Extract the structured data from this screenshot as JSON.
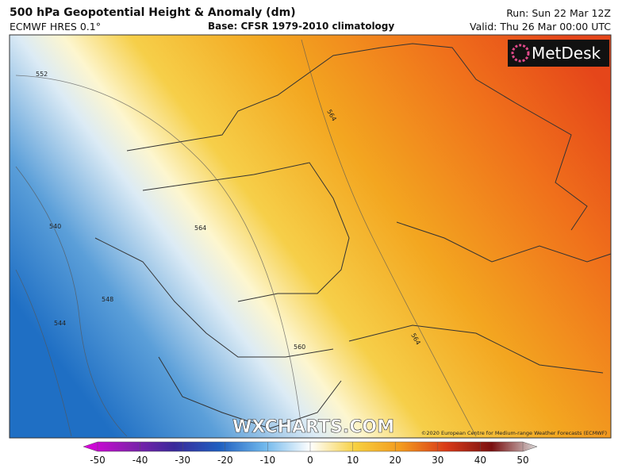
{
  "header": {
    "title": "500 hPa Geopotential Height & Anomaly (dm)",
    "model": "ECMWF HRES 0.1°",
    "base": "Base: CFSR 1979-2010 climatology",
    "run": "Run: Sun 22 Mar 12Z",
    "valid": "Valid: Thu 26 Mar 00:00 UTC"
  },
  "map": {
    "logo": "MetDesk",
    "watermark": "WXCHARTS.COM",
    "copyright": "©2020 European Centre for Medium-range Weather Forecasts (ECMWF)",
    "contour_labels": [
      "552",
      "564",
      "540",
      "544",
      "548",
      "560",
      "564",
      "564"
    ]
  },
  "colorbar": {
    "ticks": [
      -50,
      -40,
      -30,
      -20,
      -10,
      0,
      10,
      20,
      30,
      40,
      50
    ]
  }
}
